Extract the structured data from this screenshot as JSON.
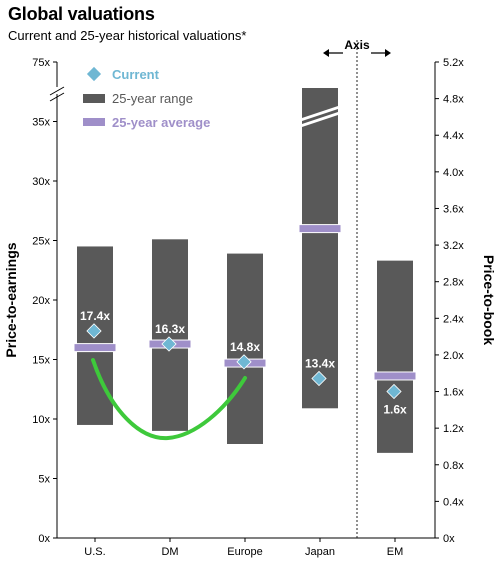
{
  "chart_data": {
    "type": "bar",
    "title": "Global valuations",
    "subtitle": "Current and 25-year historical valuations*",
    "categories": [
      "U.S.",
      "DM",
      "Europe",
      "Japan",
      "EM"
    ],
    "ylabel_left": "Price-to-earnings",
    "ylabel_right": "Price-to-book",
    "left_axis": {
      "unit": "x",
      "ticks": [
        0,
        5,
        10,
        15,
        20,
        25,
        30,
        35
      ],
      "tick_labels": [
        "0x",
        "5x",
        "10x",
        "15x",
        "20x",
        "25x",
        "30x",
        "35x"
      ],
      "break_top_label": "75x",
      "ylim": [
        0,
        40
      ]
    },
    "right_axis": {
      "unit": "x",
      "ticks": [
        0,
        0.4,
        0.8,
        1.2,
        1.6,
        2.0,
        2.4,
        2.8,
        3.2,
        3.6,
        4.0,
        4.4,
        4.8,
        5.2
      ],
      "tick_labels": [
        "0x",
        "0.4x",
        "0.8x",
        "1.2x",
        "1.6x",
        "2.0x",
        "2.4x",
        "2.8x",
        "3.2x",
        "3.6x",
        "4.0x",
        "4.4x",
        "4.8x",
        "5.2x"
      ],
      "ylim": [
        0,
        5.2
      ]
    },
    "axis_divider_label": "Axis",
    "legend": {
      "placement": "top-left",
      "entries": [
        "Current",
        "25-year range",
        "25-year average"
      ]
    },
    "series": [
      {
        "name": "25-year range",
        "axis": [
          "left",
          "left",
          "left",
          "left",
          "right"
        ],
        "low": [
          9.5,
          9.0,
          7.9,
          10.9,
          0.93
        ],
        "high": [
          24.5,
          25.1,
          23.9,
          75,
          3.03
        ]
      },
      {
        "name": "25-year average",
        "axis": [
          "left",
          "left",
          "left",
          "left",
          "right"
        ],
        "values": [
          16.0,
          16.3,
          14.7,
          26.0,
          1.77
        ]
      },
      {
        "name": "Current",
        "axis": [
          "left",
          "left",
          "left",
          "left",
          "right"
        ],
        "values": [
          17.4,
          16.3,
          14.8,
          13.4,
          1.6
        ],
        "labels": [
          "17.4x",
          "16.3x",
          "14.8x",
          "13.4x",
          "1.6x"
        ]
      }
    ],
    "colors": {
      "range": "#595959",
      "average": "#9f8fc9",
      "current": "#6fb7d3",
      "annotation_curve": "#3ec93b",
      "label_on_bar": "#ffffff"
    }
  }
}
